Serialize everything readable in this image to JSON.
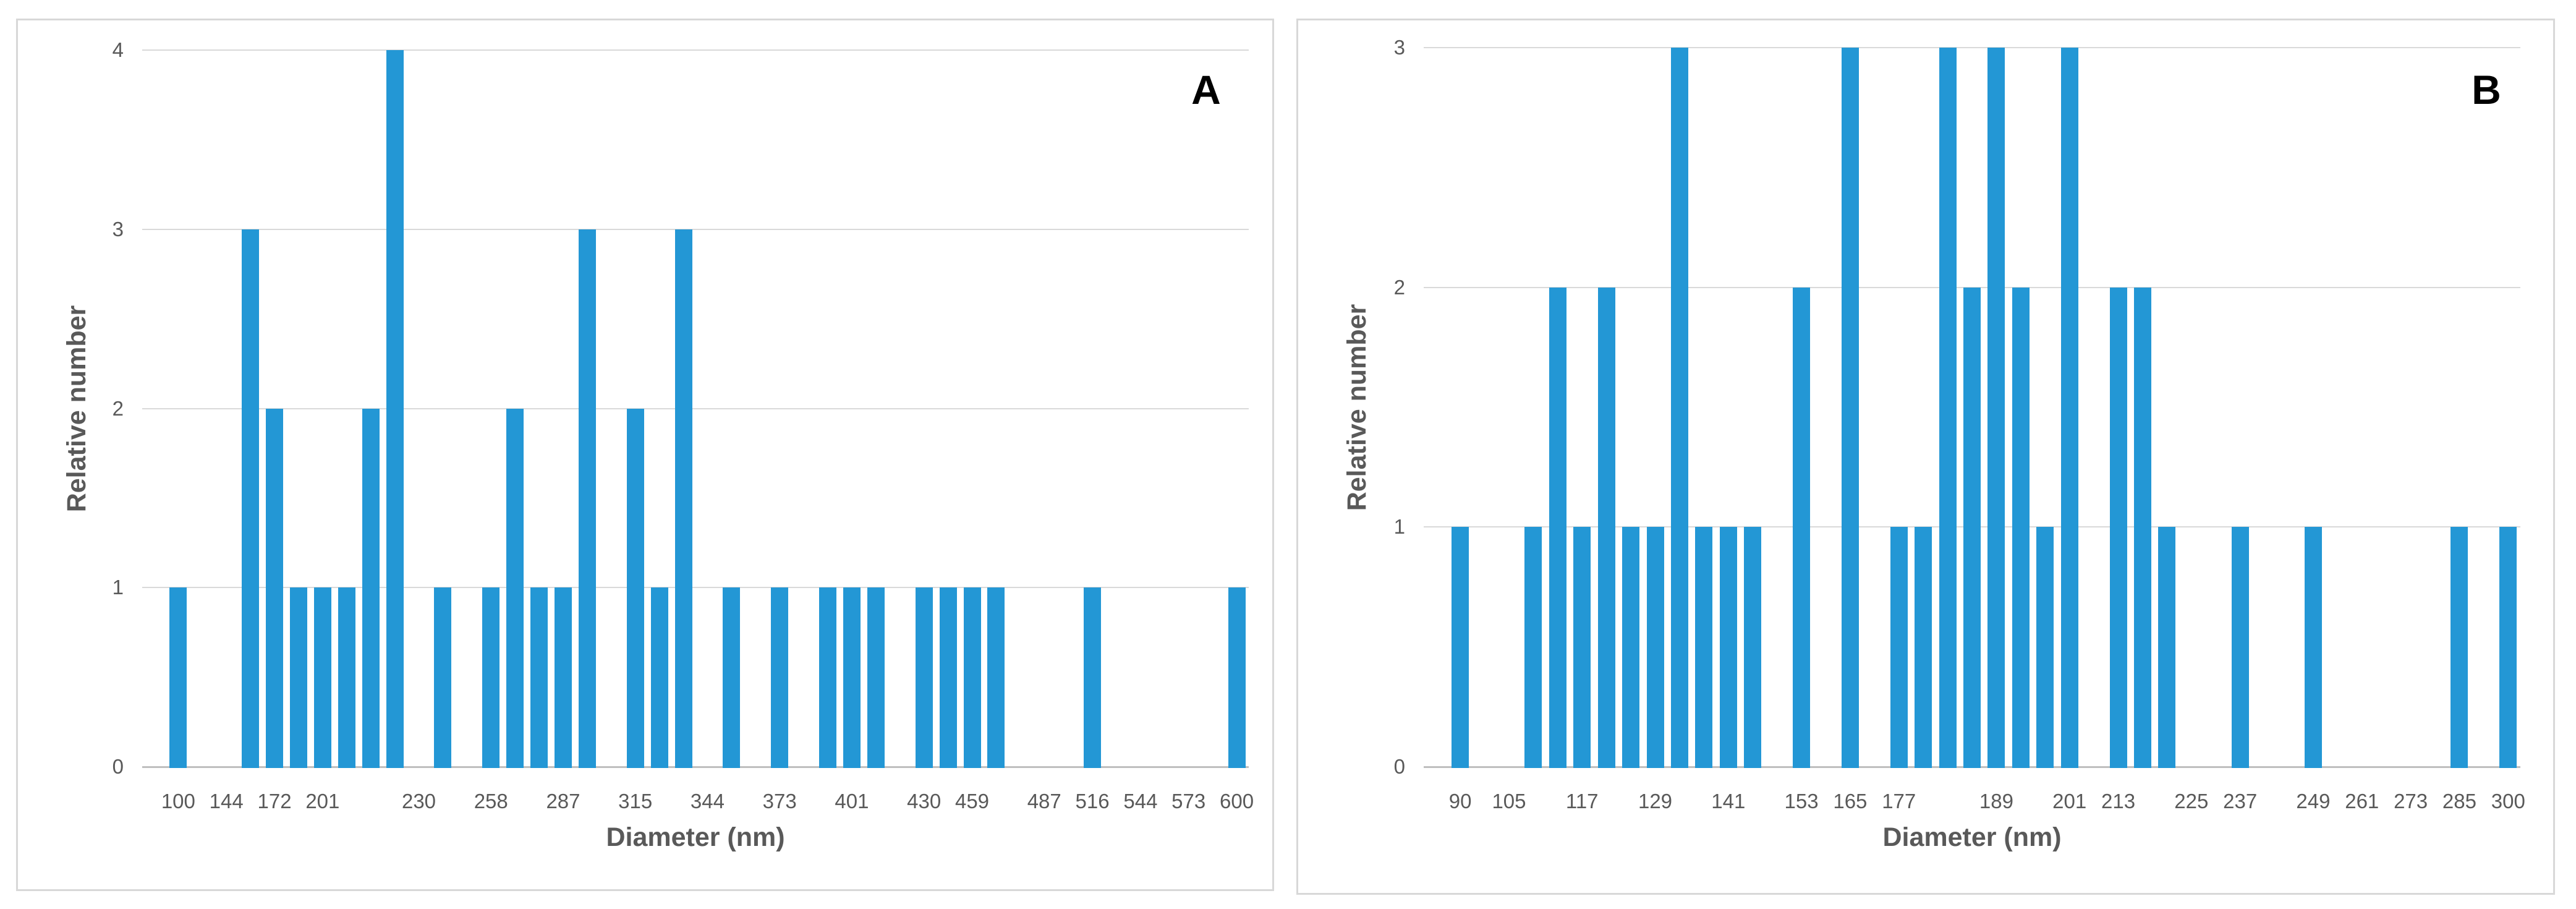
{
  "figure": {
    "background": "#ffffff",
    "description_labels": {
      "panel_a": "A",
      "panel_b": "B"
    }
  },
  "colors": {
    "bar": "#2397d5",
    "gridline": "#d9d9d9",
    "axis_line": "#bfbfbf",
    "tick_text": "#595959",
    "axis_title_text": "#595959",
    "panel_border": "#d8d8d8",
    "corner_letter": "#000000"
  },
  "chart_data": [
    {
      "type": "bar",
      "panel_label": "A",
      "xlabel": "Diameter (nm)",
      "ylabel": "Relative number",
      "ylim": [
        0,
        4
      ],
      "y_ticks": [
        "0",
        "1",
        "2",
        "3",
        "4"
      ],
      "grid": true,
      "legend": "none",
      "x_tick_labels_shown": [
        "100",
        "144",
        "172",
        "201",
        "230",
        "258",
        "287",
        "315",
        "344",
        "373",
        "401",
        "430",
        "459",
        "487",
        "516",
        "544",
        "573",
        "600"
      ],
      "categories": [
        [
          "100",
          1
        ],
        [
          "",
          0
        ],
        [
          "144",
          0
        ],
        [
          "",
          3
        ],
        [
          "172",
          2
        ],
        [
          "",
          1
        ],
        [
          "201",
          1
        ],
        [
          "",
          1
        ],
        [
          "",
          2
        ],
        [
          "",
          4
        ],
        [
          "230",
          0
        ],
        [
          "",
          1
        ],
        [
          "",
          0
        ],
        [
          "258",
          1
        ],
        [
          "",
          2
        ],
        [
          "",
          1
        ],
        [
          "287",
          1
        ],
        [
          "",
          3
        ],
        [
          "",
          0
        ],
        [
          "315",
          2
        ],
        [
          "",
          1
        ],
        [
          "",
          3
        ],
        [
          "344",
          0
        ],
        [
          "",
          1
        ],
        [
          "",
          0
        ],
        [
          "373",
          1
        ],
        [
          "",
          0
        ],
        [
          "",
          1
        ],
        [
          "401",
          1
        ],
        [
          "",
          1
        ],
        [
          "",
          0
        ],
        [
          "430",
          1
        ],
        [
          "",
          1
        ],
        [
          "459",
          1
        ],
        [
          "",
          1
        ],
        [
          "",
          0
        ],
        [
          "487",
          0
        ],
        [
          "",
          0
        ],
        [
          "516",
          1
        ],
        [
          "",
          0
        ],
        [
          "544",
          0
        ],
        [
          "",
          0
        ],
        [
          "573",
          0
        ],
        [
          "",
          0
        ],
        [
          "600",
          1
        ]
      ]
    },
    {
      "type": "bar",
      "panel_label": "B",
      "xlabel": "Diameter (nm)",
      "ylabel": "Relative number",
      "ylim": [
        0,
        3
      ],
      "y_ticks": [
        "0",
        "1",
        "2",
        "3"
      ],
      "grid": true,
      "legend": "none",
      "x_tick_labels_shown": [
        "90",
        "105",
        "117",
        "129",
        "141",
        "153",
        "165",
        "177",
        "189",
        "201",
        "213",
        "225",
        "237",
        "249",
        "261",
        "273",
        "285",
        "300"
      ],
      "categories": [
        [
          "90",
          1
        ],
        [
          "",
          0
        ],
        [
          "105",
          0
        ],
        [
          "",
          1
        ],
        [
          "",
          2
        ],
        [
          "117",
          1
        ],
        [
          "",
          2
        ],
        [
          "",
          1
        ],
        [
          "129",
          1
        ],
        [
          "",
          3
        ],
        [
          "",
          1
        ],
        [
          "141",
          1
        ],
        [
          "",
          1
        ],
        [
          "",
          0
        ],
        [
          "153",
          2
        ],
        [
          "",
          0
        ],
        [
          "165",
          3
        ],
        [
          "",
          0
        ],
        [
          "177",
          1
        ],
        [
          "",
          1
        ],
        [
          "",
          3
        ],
        [
          "",
          2
        ],
        [
          "189",
          3
        ],
        [
          "",
          2
        ],
        [
          "",
          1
        ],
        [
          "201",
          3
        ],
        [
          "",
          0
        ],
        [
          "213",
          2
        ],
        [
          "",
          2
        ],
        [
          "",
          1
        ],
        [
          "225",
          0
        ],
        [
          "",
          0
        ],
        [
          "237",
          1
        ],
        [
          "",
          0
        ],
        [
          "",
          0
        ],
        [
          "249",
          1
        ],
        [
          "",
          0
        ],
        [
          "261",
          0
        ],
        [
          "",
          0
        ],
        [
          "273",
          0
        ],
        [
          "",
          0
        ],
        [
          "285",
          1
        ],
        [
          "",
          0
        ],
        [
          "300",
          1
        ]
      ]
    }
  ]
}
